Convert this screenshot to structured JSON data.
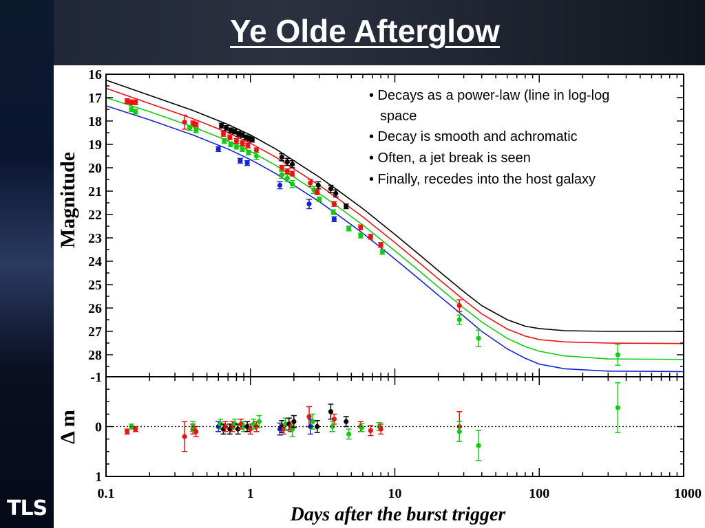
{
  "slide": {
    "title": "Ye Olde Afterglow",
    "logo_text": "TLS"
  },
  "bullets": [
    "• Decays as a power-law (line in log-log",
    "space",
    "• Decay is smooth and achromatic",
    "• Often, a jet break is seen",
    "• Finally, recedes into the host galaxy"
  ],
  "chart_data": [
    {
      "type": "scatter",
      "ylabel": "Magnitude",
      "xlabel": "Days after the burst trigger",
      "xscale": "log",
      "xlim": [
        0.1,
        1000
      ],
      "ylim": [
        29,
        16
      ],
      "y_ticks": [
        "16",
        "17",
        "18",
        "19",
        "20",
        "21",
        "22",
        "23",
        "24",
        "25",
        "26",
        "27",
        "28"
      ],
      "x_ticks": [
        "0.1",
        "1",
        "10",
        "100",
        "1000"
      ],
      "grid": false,
      "colors": {
        "black": "#000000",
        "red": "#ee1111",
        "green": "#11cc11",
        "blue": "#1122dd"
      },
      "model_curves": [
        {
          "color": "black",
          "points": [
            [
              0.1,
              16.25
            ],
            [
              0.2,
              16.9
            ],
            [
              0.4,
              17.55
            ],
            [
              0.7,
              18.15
            ],
            [
              1.0,
              18.6
            ],
            [
              1.5,
              19.2
            ],
            [
              2,
              19.7
            ],
            [
              3,
              20.4
            ],
            [
              4,
              20.95
            ],
            [
              6,
              21.75
            ],
            [
              10,
              22.85
            ],
            [
              15,
              23.75
            ],
            [
              20,
              24.4
            ],
            [
              30,
              25.3
            ],
            [
              40,
              25.9
            ],
            [
              60,
              26.5
            ],
            [
              80,
              26.78
            ],
            [
              100,
              26.88
            ],
            [
              150,
              26.97
            ],
            [
              300,
              27.0
            ],
            [
              1000,
              27.0
            ]
          ]
        },
        {
          "color": "red",
          "points": [
            [
              0.1,
              16.6
            ],
            [
              0.2,
              17.25
            ],
            [
              0.4,
              17.9
            ],
            [
              0.7,
              18.5
            ],
            [
              1.0,
              18.95
            ],
            [
              1.5,
              19.55
            ],
            [
              2,
              20.05
            ],
            [
              3,
              20.75
            ],
            [
              4,
              21.3
            ],
            [
              6,
              22.1
            ],
            [
              10,
              23.2
            ],
            [
              15,
              24.1
            ],
            [
              20,
              24.75
            ],
            [
              30,
              25.65
            ],
            [
              40,
              26.25
            ],
            [
              60,
              26.9
            ],
            [
              80,
              27.2
            ],
            [
              100,
              27.35
            ],
            [
              150,
              27.45
            ],
            [
              300,
              27.5
            ],
            [
              1000,
              27.52
            ]
          ]
        },
        {
          "color": "green",
          "points": [
            [
              0.1,
              17.0
            ],
            [
              0.2,
              17.6
            ],
            [
              0.4,
              18.25
            ],
            [
              0.7,
              18.85
            ],
            [
              1.0,
              19.3
            ],
            [
              1.5,
              19.9
            ],
            [
              2,
              20.4
            ],
            [
              3,
              21.1
            ],
            [
              4,
              21.65
            ],
            [
              6,
              22.45
            ],
            [
              10,
              23.55
            ],
            [
              15,
              24.45
            ],
            [
              20,
              25.1
            ],
            [
              30,
              26.0
            ],
            [
              40,
              26.6
            ],
            [
              60,
              27.3
            ],
            [
              80,
              27.65
            ],
            [
              100,
              27.85
            ],
            [
              150,
              28.05
            ],
            [
              300,
              28.18
            ],
            [
              1000,
              28.2
            ]
          ]
        },
        {
          "color": "blue",
          "points": [
            [
              0.1,
              17.35
            ],
            [
              0.2,
              17.95
            ],
            [
              0.4,
              18.6
            ],
            [
              0.7,
              19.2
            ],
            [
              1.0,
              19.65
            ],
            [
              1.5,
              20.25
            ],
            [
              2,
              20.75
            ],
            [
              3,
              21.45
            ],
            [
              4,
              22.0
            ],
            [
              6,
              22.8
            ],
            [
              10,
              23.9
            ],
            [
              15,
              24.8
            ],
            [
              20,
              25.45
            ],
            [
              30,
              26.35
            ],
            [
              40,
              27.0
            ],
            [
              60,
              27.75
            ],
            [
              80,
              28.15
            ],
            [
              100,
              28.4
            ],
            [
              150,
              28.6
            ],
            [
              300,
              28.7
            ],
            [
              1000,
              28.72
            ]
          ]
        }
      ],
      "points": [
        {
          "c": "red",
          "x": 0.14,
          "y": 17.15,
          "e": 0.1
        },
        {
          "c": "red",
          "x": 0.15,
          "y": 17.2,
          "e": 0.1
        },
        {
          "c": "red",
          "x": 0.16,
          "y": 17.2,
          "e": 0.1
        },
        {
          "c": "green",
          "x": 0.15,
          "y": 17.5,
          "e": 0.1
        },
        {
          "c": "green",
          "x": 0.16,
          "y": 17.6,
          "e": 0.1
        },
        {
          "c": "red",
          "x": 0.35,
          "y": 18.05,
          "e": 0.3
        },
        {
          "c": "red",
          "x": 0.4,
          "y": 18.1,
          "e": 0.1
        },
        {
          "c": "red",
          "x": 0.42,
          "y": 18.15,
          "e": 0.1
        },
        {
          "c": "green",
          "x": 0.38,
          "y": 18.3,
          "e": 0.1
        },
        {
          "c": "green",
          "x": 0.42,
          "y": 18.4,
          "e": 0.1
        },
        {
          "c": "blue",
          "x": 0.6,
          "y": 19.2,
          "e": 0.1
        },
        {
          "c": "black",
          "x": 0.63,
          "y": 18.2,
          "e": 0.1
        },
        {
          "c": "black",
          "x": 0.68,
          "y": 18.3,
          "e": 0.1
        },
        {
          "c": "black",
          "x": 0.73,
          "y": 18.4,
          "e": 0.1
        },
        {
          "c": "black",
          "x": 0.78,
          "y": 18.45,
          "e": 0.1
        },
        {
          "c": "black",
          "x": 0.83,
          "y": 18.55,
          "e": 0.1
        },
        {
          "c": "black",
          "x": 0.88,
          "y": 18.6,
          "e": 0.1
        },
        {
          "c": "black",
          "x": 0.93,
          "y": 18.7,
          "e": 0.1
        },
        {
          "c": "black",
          "x": 0.98,
          "y": 18.75,
          "e": 0.1
        },
        {
          "c": "black",
          "x": 1.03,
          "y": 18.8,
          "e": 0.1
        },
        {
          "c": "red",
          "x": 0.65,
          "y": 18.55,
          "e": 0.1
        },
        {
          "c": "red",
          "x": 0.72,
          "y": 18.7,
          "e": 0.1
        },
        {
          "c": "red",
          "x": 0.8,
          "y": 18.85,
          "e": 0.1
        },
        {
          "c": "red",
          "x": 0.88,
          "y": 18.95,
          "e": 0.1
        },
        {
          "c": "red",
          "x": 0.96,
          "y": 19.05,
          "e": 0.1
        },
        {
          "c": "red",
          "x": 1.1,
          "y": 19.25,
          "e": 0.1
        },
        {
          "c": "green",
          "x": 0.66,
          "y": 18.85,
          "e": 0.1
        },
        {
          "c": "green",
          "x": 0.73,
          "y": 19.0,
          "e": 0.1
        },
        {
          "c": "green",
          "x": 0.8,
          "y": 19.1,
          "e": 0.1
        },
        {
          "c": "green",
          "x": 0.88,
          "y": 19.2,
          "e": 0.1
        },
        {
          "c": "green",
          "x": 0.97,
          "y": 19.35,
          "e": 0.1
        },
        {
          "c": "green",
          "x": 1.1,
          "y": 19.5,
          "e": 0.15
        },
        {
          "c": "blue",
          "x": 0.85,
          "y": 19.7,
          "e": 0.1
        },
        {
          "c": "blue",
          "x": 0.95,
          "y": 19.8,
          "e": 0.1
        },
        {
          "c": "black",
          "x": 1.65,
          "y": 19.55,
          "e": 0.15
        },
        {
          "c": "black",
          "x": 1.8,
          "y": 19.75,
          "e": 0.15
        },
        {
          "c": "black",
          "x": 1.95,
          "y": 19.85,
          "e": 0.15
        },
        {
          "c": "red",
          "x": 1.65,
          "y": 20.0,
          "e": 0.1
        },
        {
          "c": "red",
          "x": 1.8,
          "y": 20.15,
          "e": 0.1
        },
        {
          "c": "red",
          "x": 1.95,
          "y": 20.25,
          "e": 0.1
        },
        {
          "c": "green",
          "x": 1.65,
          "y": 20.3,
          "e": 0.15
        },
        {
          "c": "green",
          "x": 1.8,
          "y": 20.45,
          "e": 0.15
        },
        {
          "c": "green",
          "x": 1.95,
          "y": 20.7,
          "e": 0.15
        },
        {
          "c": "blue",
          "x": 1.6,
          "y": 20.75,
          "e": 0.15
        },
        {
          "c": "red",
          "x": 2.6,
          "y": 20.65,
          "e": 0.15
        },
        {
          "c": "black",
          "x": 2.95,
          "y": 20.75,
          "e": 0.15
        },
        {
          "c": "green",
          "x": 2.75,
          "y": 20.95,
          "e": 0.15
        },
        {
          "c": "red",
          "x": 2.9,
          "y": 21.05,
          "e": 0.1
        },
        {
          "c": "green",
          "x": 3.0,
          "y": 21.35,
          "e": 0.1
        },
        {
          "c": "blue",
          "x": 2.55,
          "y": 21.55,
          "e": 0.2
        },
        {
          "c": "black",
          "x": 3.6,
          "y": 20.9,
          "e": 0.15
        },
        {
          "c": "black",
          "x": 3.9,
          "y": 21.1,
          "e": 0.15
        },
        {
          "c": "black",
          "x": 4.6,
          "y": 21.65,
          "e": 0.1
        },
        {
          "c": "red",
          "x": 3.8,
          "y": 21.55,
          "e": 0.1
        },
        {
          "c": "green",
          "x": 3.75,
          "y": 21.9,
          "e": 0.1
        },
        {
          "c": "blue",
          "x": 3.8,
          "y": 22.2,
          "e": 0.1
        },
        {
          "c": "red",
          "x": 5.8,
          "y": 22.55,
          "e": 0.1
        },
        {
          "c": "red",
          "x": 6.8,
          "y": 22.95,
          "e": 0.1
        },
        {
          "c": "red",
          "x": 8.0,
          "y": 23.3,
          "e": 0.1
        },
        {
          "c": "green",
          "x": 4.8,
          "y": 22.6,
          "e": 0.1
        },
        {
          "c": "green",
          "x": 5.8,
          "y": 22.9,
          "e": 0.1
        },
        {
          "c": "green",
          "x": 8.2,
          "y": 23.6,
          "e": 0.1
        },
        {
          "c": "red",
          "x": 28,
          "y": 25.9,
          "e": 0.25
        },
        {
          "c": "green",
          "x": 28,
          "y": 26.5,
          "e": 0.2
        },
        {
          "c": "green",
          "x": 38,
          "y": 27.3,
          "e": 0.35
        },
        {
          "c": "green",
          "x": 350,
          "y": 28.0,
          "e": 0.45
        }
      ]
    },
    {
      "type": "scatter",
      "ylabel": "Δ m",
      "xlabel": "Days after the burst trigger",
      "xscale": "log",
      "xlim": [
        0.1,
        1000
      ],
      "ylim": [
        1,
        -1
      ],
      "y_ticks": [
        "-1",
        "0",
        "1"
      ],
      "reference_line": 0,
      "points": [
        {
          "c": "red",
          "x": 0.14,
          "y": 0.1,
          "e": 0.05
        },
        {
          "c": "green",
          "x": 0.15,
          "y": 0.0,
          "e": 0.05
        },
        {
          "c": "red",
          "x": 0.16,
          "y": 0.05,
          "e": 0.05
        },
        {
          "c": "red",
          "x": 0.35,
          "y": 0.2,
          "e": 0.3
        },
        {
          "c": "red",
          "x": 0.4,
          "y": 0.05,
          "e": 0.1
        },
        {
          "c": "green",
          "x": 0.4,
          "y": 0.0,
          "e": 0.1
        },
        {
          "c": "red",
          "x": 0.42,
          "y": 0.1,
          "e": 0.1
        },
        {
          "c": "blue",
          "x": 0.6,
          "y": 0.0,
          "e": 0.1
        },
        {
          "c": "green",
          "x": 0.62,
          "y": -0.05,
          "e": 0.1
        },
        {
          "c": "black",
          "x": 0.65,
          "y": 0.05,
          "e": 0.1
        },
        {
          "c": "red",
          "x": 0.67,
          "y": 0.0,
          "e": 0.1
        },
        {
          "c": "black",
          "x": 0.72,
          "y": 0.05,
          "e": 0.1
        },
        {
          "c": "red",
          "x": 0.75,
          "y": 0.0,
          "e": 0.1
        },
        {
          "c": "green",
          "x": 0.78,
          "y": -0.05,
          "e": 0.1
        },
        {
          "c": "black",
          "x": 0.82,
          "y": 0.05,
          "e": 0.1
        },
        {
          "c": "red",
          "x": 0.86,
          "y": -0.05,
          "e": 0.1
        },
        {
          "c": "green",
          "x": 0.9,
          "y": 0.0,
          "e": 0.1
        },
        {
          "c": "black",
          "x": 0.95,
          "y": 0.0,
          "e": 0.1
        },
        {
          "c": "red",
          "x": 1.0,
          "y": 0.05,
          "e": 0.1
        },
        {
          "c": "green",
          "x": 1.05,
          "y": -0.05,
          "e": 0.1
        },
        {
          "c": "red",
          "x": 1.1,
          "y": 0.0,
          "e": 0.1
        },
        {
          "c": "green",
          "x": 1.15,
          "y": -0.1,
          "e": 0.12
        },
        {
          "c": "blue",
          "x": 1.6,
          "y": 0.05,
          "e": 0.12
        },
        {
          "c": "black",
          "x": 1.65,
          "y": 0.0,
          "e": 0.12
        },
        {
          "c": "red",
          "x": 1.7,
          "y": 0.05,
          "e": 0.1
        },
        {
          "c": "green",
          "x": 1.75,
          "y": -0.05,
          "e": 0.12
        },
        {
          "c": "black",
          "x": 1.85,
          "y": -0.05,
          "e": 0.12
        },
        {
          "c": "red",
          "x": 1.9,
          "y": 0.0,
          "e": 0.1
        },
        {
          "c": "green",
          "x": 1.95,
          "y": 0.05,
          "e": 0.15
        },
        {
          "c": "black",
          "x": 2.0,
          "y": -0.1,
          "e": 0.12
        },
        {
          "c": "red",
          "x": 2.55,
          "y": -0.2,
          "e": 0.2
        },
        {
          "c": "blue",
          "x": 2.6,
          "y": 0.0,
          "e": 0.15
        },
        {
          "c": "green",
          "x": 2.7,
          "y": -0.1,
          "e": 0.15
        },
        {
          "c": "black",
          "x": 2.9,
          "y": 0.0,
          "e": 0.12
        },
        {
          "c": "black",
          "x": 3.6,
          "y": -0.3,
          "e": 0.15
        },
        {
          "c": "red",
          "x": 3.8,
          "y": -0.15,
          "e": 0.1
        },
        {
          "c": "green",
          "x": 3.7,
          "y": 0.0,
          "e": 0.1
        },
        {
          "c": "black",
          "x": 4.6,
          "y": -0.1,
          "e": 0.1
        },
        {
          "c": "green",
          "x": 4.8,
          "y": 0.15,
          "e": 0.1
        },
        {
          "c": "red",
          "x": 5.8,
          "y": 0.0,
          "e": 0.1
        },
        {
          "c": "green",
          "x": 5.9,
          "y": 0.02,
          "e": 0.08
        },
        {
          "c": "red",
          "x": 6.8,
          "y": 0.08,
          "e": 0.1
        },
        {
          "c": "green",
          "x": 7.8,
          "y": 0.0,
          "e": 0.08
        },
        {
          "c": "red",
          "x": 8.0,
          "y": 0.05,
          "e": 0.1
        },
        {
          "c": "red",
          "x": 28,
          "y": 0.0,
          "e": 0.3
        },
        {
          "c": "green",
          "x": 28,
          "y": 0.1,
          "e": 0.2
        },
        {
          "c": "green",
          "x": 38,
          "y": 0.38,
          "e": 0.3
        },
        {
          "c": "green",
          "x": 350,
          "y": -0.38,
          "e": 0.5
        }
      ]
    }
  ]
}
